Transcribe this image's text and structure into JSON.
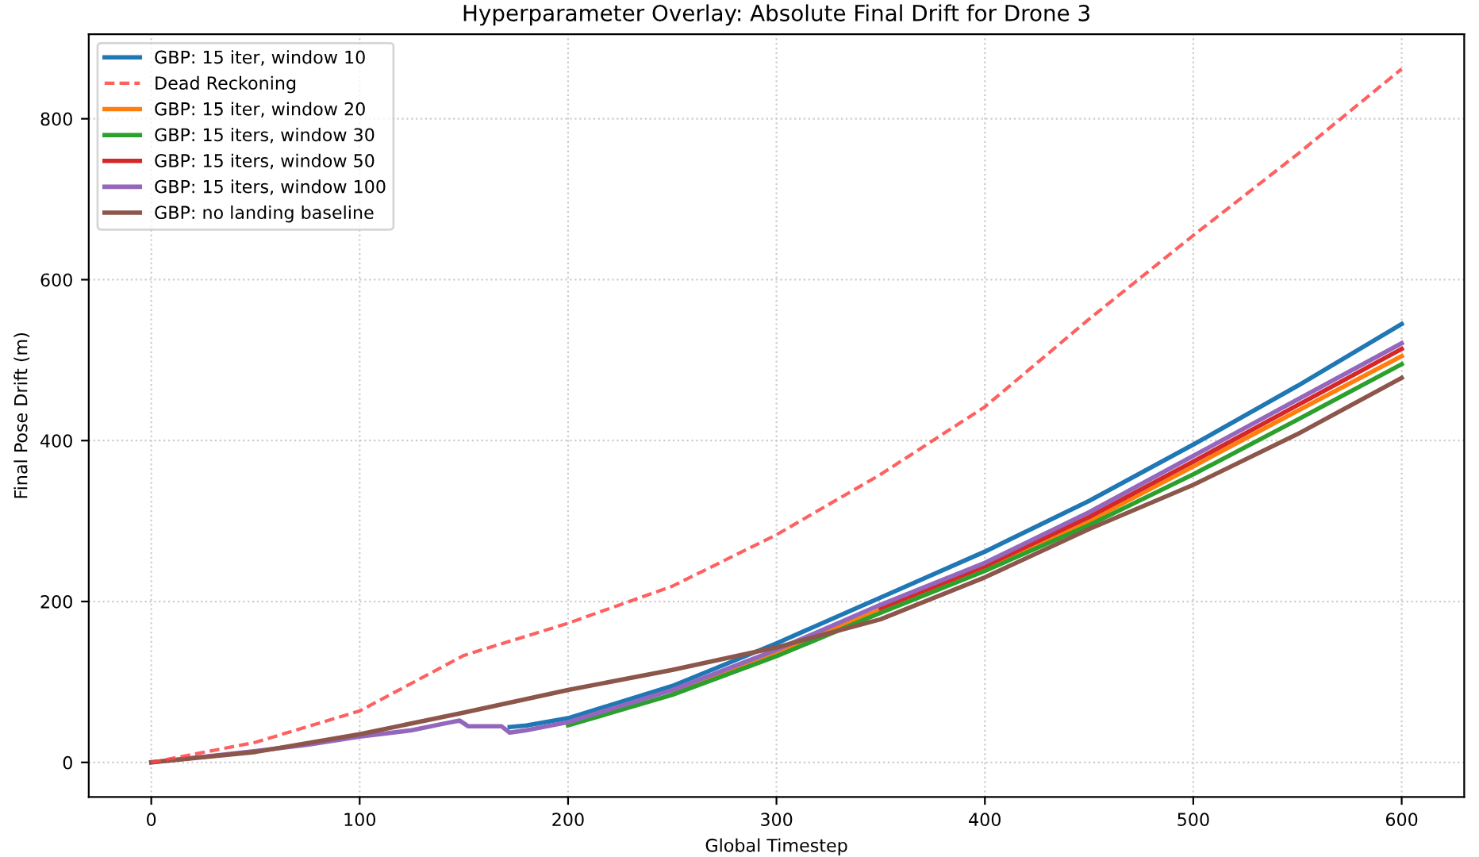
{
  "chart_data": {
    "type": "line",
    "title": "Hyperparameter Overlay: Absolute Final Drift for Drone 3",
    "xlabel": "Global Timestep",
    "ylabel": "Final Pose Drift (m)",
    "xlim": [
      -30,
      630
    ],
    "xticks": [
      0,
      100,
      200,
      300,
      400,
      500,
      600
    ],
    "ylim": [
      -43,
      905
    ],
    "yticks": [
      0,
      200,
      400,
      600,
      800
    ],
    "grid": true,
    "legend": "top left",
    "marker": "none",
    "series": [
      {
        "name": "GBP: 15 iter, window 10",
        "color": "#1f77b4",
        "line_style": "solid",
        "x": [
          172,
          180,
          200,
          250,
          300,
          350,
          400,
          450,
          500,
          550,
          600
        ],
        "values": [
          44,
          46,
          55,
          95,
          148,
          205,
          262,
          325,
          395,
          468,
          545
        ]
      },
      {
        "name": "Dead Reckoning",
        "color": "#ff4444",
        "line_style": "dashed",
        "x": [
          0,
          50,
          100,
          150,
          200,
          250,
          300,
          350,
          400,
          450,
          500,
          550,
          600
        ],
        "values": [
          0,
          25,
          64,
          133,
          173,
          219,
          283,
          358,
          442,
          551,
          655,
          756,
          862
        ]
      },
      {
        "name": "GBP: 15 iter, window 20",
        "color": "#ff7f0e",
        "line_style": "solid",
        "x": [
          250,
          300,
          350,
          400,
          450,
          500,
          550,
          600
        ],
        "values": [
          86,
          136,
          190,
          243,
          300,
          368,
          437,
          505
        ]
      },
      {
        "name": "GBP: 15 iters, window 30",
        "color": "#2ca02c",
        "line_style": "solid",
        "x": [
          200,
          250,
          300,
          350,
          400,
          450,
          500,
          550,
          600
        ],
        "values": [
          46,
          84,
          132,
          186,
          238,
          295,
          358,
          426,
          495
        ]
      },
      {
        "name": "GBP: 15 iters, window 50",
        "color": "#d62728",
        "line_style": "solid",
        "x": [
          350,
          400,
          450,
          500,
          550,
          600
        ],
        "values": [
          192,
          244,
          305,
          374,
          444,
          514
        ]
      },
      {
        "name": "GBP: 15 iters, window 100",
        "color": "#9467bd",
        "line_style": "solid",
        "x": [
          0,
          25,
          50,
          75,
          100,
          125,
          140,
          148,
          152,
          168,
          172,
          180,
          200,
          250,
          300,
          350,
          400,
          450,
          500,
          550,
          600
        ],
        "values": [
          0,
          7,
          14,
          22,
          32,
          40,
          48,
          52,
          45,
          45,
          37,
          40,
          50,
          90,
          140,
          196,
          248,
          311,
          381,
          451,
          521
        ]
      },
      {
        "name": "GBP: no landing baseline",
        "color": "#8c564b",
        "line_style": "solid",
        "x": [
          0,
          50,
          100,
          150,
          200,
          250,
          300,
          350,
          400,
          450,
          500,
          550,
          600
        ],
        "values": [
          0,
          13,
          35,
          62,
          90,
          115,
          143,
          178,
          230,
          290,
          345,
          408,
          478
        ]
      }
    ]
  }
}
